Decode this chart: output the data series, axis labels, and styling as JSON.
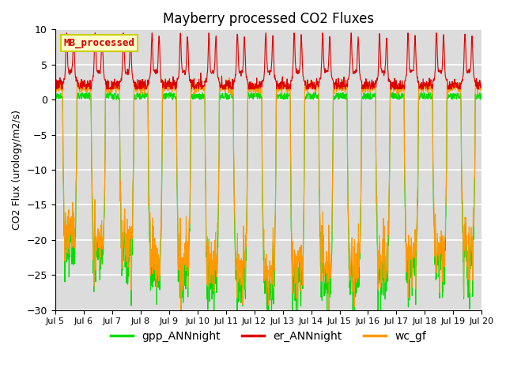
{
  "title": "Mayberry processed CO2 Fluxes",
  "ylabel": "CO2 Flux (urology/m2/s)",
  "ylim": [
    -30,
    10
  ],
  "yticks": [
    -30,
    -25,
    -20,
    -15,
    -10,
    -5,
    0,
    5,
    10
  ],
  "start_day": 5,
  "end_day": 20,
  "n_days": 15,
  "points_per_day": 96,
  "colors": {
    "gpp": "#00dd00",
    "er": "#dd0000",
    "wc": "#ff9900"
  },
  "legend_label_box": "MB_processed",
  "legend_box_facecolor": "#ffffcc",
  "legend_box_edgecolor": "#cccc00",
  "legend_box_text_color": "#cc0000",
  "bg_color": "#dcdcdc",
  "grid_color": "white"
}
